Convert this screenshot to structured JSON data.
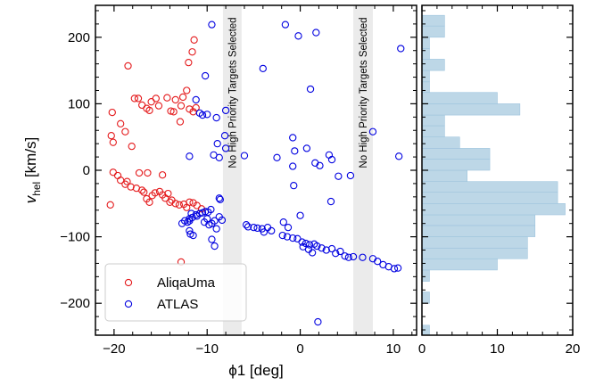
{
  "chart_data": [
    {
      "type": "scatter",
      "xlabel": "ϕ1 [deg]",
      "ylabel_main": "v",
      "ylabel_sub": "hel",
      "ylabel_unit": " [km/s]",
      "xlim": [
        -22,
        12.5
      ],
      "ylim": [
        -248,
        248
      ],
      "xticks": [
        -20,
        -10,
        0,
        10
      ],
      "xtick_labels": [
        "−20",
        "−10",
        "0",
        "10"
      ],
      "yticks": [
        -200,
        -100,
        0,
        100,
        200
      ],
      "ytick_labels": [
        "−200",
        "−100",
        "0",
        "100",
        "200"
      ],
      "legend_placement": "lower-left",
      "bands": [
        {
          "x0": -8.3,
          "x1": -6.3,
          "label": "No High Priority Targets Selected"
        },
        {
          "x0": 5.7,
          "x1": 7.8,
          "label": "No High Priority Targets Selected"
        }
      ],
      "series": [
        {
          "name": "AliqaUma",
          "color": "#e41a1c",
          "points": [
            [
              -18.5,
              157
            ],
            [
              -17.8,
              108
            ],
            [
              -17.4,
              108
            ],
            [
              -17.0,
              98
            ],
            [
              -16.5,
              93
            ],
            [
              -16.2,
              90
            ],
            [
              -16.0,
              103
            ],
            [
              -15.5,
              108
            ],
            [
              -15.2,
              97
            ],
            [
              -14.3,
              109
            ],
            [
              -13.9,
              89
            ],
            [
              -13.6,
              88
            ],
            [
              -13.4,
              106
            ],
            [
              -12.8,
              97
            ],
            [
              -12.6,
              110
            ],
            [
              -12.2,
              120
            ],
            [
              -11.9,
              92
            ],
            [
              -11.5,
              88
            ],
            [
              -11.2,
              94
            ],
            [
              -12.0,
              162
            ],
            [
              -11.6,
              178
            ],
            [
              -11.4,
              196
            ],
            [
              -20.2,
              87
            ],
            [
              -19.3,
              70
            ],
            [
              -18.8,
              58
            ],
            [
              -18.1,
              36
            ],
            [
              -20.3,
              52
            ],
            [
              -20.1,
              42
            ],
            [
              -12.9,
              73
            ],
            [
              -20.1,
              -3
            ],
            [
              -19.6,
              -8
            ],
            [
              -19.3,
              -15
            ],
            [
              -18.8,
              -21
            ],
            [
              -18.2,
              -25
            ],
            [
              -17.6,
              -27
            ],
            [
              -17.0,
              -30
            ],
            [
              -16.8,
              -33
            ],
            [
              -16.5,
              -43
            ],
            [
              -16.2,
              -48
            ],
            [
              -15.9,
              -38
            ],
            [
              -15.6,
              -34
            ],
            [
              -15.1,
              -32
            ],
            [
              -14.8,
              -37
            ],
            [
              -14.5,
              -42
            ],
            [
              -14.2,
              -35
            ],
            [
              -14.0,
              -48
            ],
            [
              -13.8,
              -45
            ],
            [
              -13.4,
              -50
            ],
            [
              -13.0,
              -52
            ],
            [
              -12.5,
              -51
            ],
            [
              -12.2,
              -56
            ],
            [
              -11.9,
              -48
            ],
            [
              -11.5,
              -49
            ],
            [
              -11.1,
              -53
            ],
            [
              -10.6,
              -58
            ],
            [
              -17.3,
              -4
            ],
            [
              -16.4,
              -4
            ],
            [
              -14.8,
              -7
            ],
            [
              -20.4,
              -52
            ],
            [
              -12.8,
              -138
            ],
            [
              -18.6,
              -17
            ]
          ]
        },
        {
          "name": "ATLAS",
          "color": "#0000e0",
          "points": [
            [
              -9.5,
              219
            ],
            [
              -10.2,
              142
            ],
            [
              -8.0,
              90
            ],
            [
              -9.0,
              79
            ],
            [
              -10.5,
              83
            ],
            [
              -10.8,
              86
            ],
            [
              -11.2,
              106
            ],
            [
              -10.0,
              84
            ],
            [
              -8.1,
              52
            ],
            [
              -8.9,
              40
            ],
            [
              -9.3,
              23
            ],
            [
              -8.0,
              33
            ],
            [
              -8.7,
              19
            ],
            [
              -6.0,
              22
            ],
            [
              -4.0,
              153
            ],
            [
              -2.5,
              19
            ],
            [
              -1.6,
              219
            ],
            [
              -0.2,
              202
            ],
            [
              1.7,
              207
            ],
            [
              -0.8,
              6
            ],
            [
              -0.7,
              -23
            ],
            [
              -0.8,
              49
            ],
            [
              1.1,
              122
            ],
            [
              -0.6,
              29
            ],
            [
              0.7,
              33
            ],
            [
              1.6,
              11
            ],
            [
              2.1,
              7
            ],
            [
              3.4,
              16
            ],
            [
              3.1,
              23
            ],
            [
              4.1,
              -9
            ],
            [
              5.4,
              -8
            ],
            [
              3.3,
              -47
            ],
            [
              7.8,
              58
            ],
            [
              10.8,
              183
            ],
            [
              10.6,
              21
            ],
            [
              1.9,
              -228
            ],
            [
              -11.9,
              21
            ],
            [
              -8.7,
              -42
            ],
            [
              -8.6,
              -44
            ],
            [
              -9.6,
              -59
            ],
            [
              -9.9,
              -63
            ],
            [
              -10.2,
              -62
            ],
            [
              -10.5,
              -64
            ],
            [
              -10.8,
              -65
            ],
            [
              -11.2,
              -67
            ],
            [
              -11.7,
              -65
            ],
            [
              -11.1,
              -69
            ],
            [
              -11.6,
              -71
            ],
            [
              -11.9,
              -73
            ],
            [
              -12.1,
              -78
            ],
            [
              -12.4,
              -76
            ],
            [
              -11.9,
              -76
            ],
            [
              -12.7,
              -80
            ],
            [
              -10.3,
              -78
            ],
            [
              -9.5,
              -80
            ],
            [
              -8.7,
              -70
            ],
            [
              -9.0,
              -88
            ],
            [
              -9.8,
              -82
            ],
            [
              -9.2,
              -76
            ],
            [
              -10.0,
              -73
            ],
            [
              -11.9,
              -91
            ],
            [
              -11.5,
              -98
            ],
            [
              -11.8,
              -96
            ],
            [
              -9.5,
              -104
            ],
            [
              -9.2,
              -114
            ],
            [
              -8.4,
              -75
            ],
            [
              -5.6,
              -85
            ],
            [
              -5.0,
              -86
            ],
            [
              -4.6,
              -87
            ],
            [
              -4.1,
              -88
            ],
            [
              -3.9,
              -93
            ],
            [
              -3.5,
              -86
            ],
            [
              -3.1,
              -91
            ],
            [
              -5.8,
              -82
            ],
            [
              -1.3,
              -86
            ],
            [
              -1.8,
              -78
            ],
            [
              0.0,
              -68
            ],
            [
              -1.9,
              -98
            ],
            [
              -1.4,
              -100
            ],
            [
              -0.8,
              -102
            ],
            [
              -0.3,
              -103
            ],
            [
              0.2,
              -108
            ],
            [
              0.6,
              -110
            ],
            [
              1.0,
              -112
            ],
            [
              1.5,
              -111
            ],
            [
              1.8,
              -114
            ],
            [
              2.3,
              -117
            ],
            [
              2.8,
              -120
            ],
            [
              3.4,
              -118
            ],
            [
              3.8,
              -125
            ],
            [
              4.3,
              -122
            ],
            [
              4.8,
              -129
            ],
            [
              5.2,
              -131
            ],
            [
              5.7,
              -130
            ],
            [
              6.7,
              -131
            ],
            [
              7.8,
              -133
            ],
            [
              8.3,
              -137
            ],
            [
              8.9,
              -142
            ],
            [
              9.5,
              -145
            ],
            [
              10.1,
              -148
            ],
            [
              10.5,
              -147
            ],
            [
              0.9,
              -119
            ],
            [
              1.3,
              -124
            ],
            [
              0.3,
              -115
            ]
          ]
        }
      ]
    },
    {
      "type": "bar",
      "orientation": "horizontal",
      "color": "#bdd7e7",
      "xlim": [
        0,
        20
      ],
      "xticks": [
        0,
        10,
        20
      ],
      "xtick_labels": [
        "0",
        "10",
        "20"
      ],
      "bins": [
        {
          "lo": -250,
          "hi": -233,
          "count": 1
        },
        {
          "lo": -200,
          "hi": -183,
          "count": 1
        },
        {
          "lo": -167,
          "hi": -150,
          "count": 1
        },
        {
          "lo": -150,
          "hi": -133,
          "count": 10
        },
        {
          "lo": -133,
          "hi": -117,
          "count": 14
        },
        {
          "lo": -117,
          "hi": -100,
          "count": 14
        },
        {
          "lo": -100,
          "hi": -83,
          "count": 15
        },
        {
          "lo": -83,
          "hi": -67,
          "count": 15
        },
        {
          "lo": -67,
          "hi": -50,
          "count": 19
        },
        {
          "lo": -50,
          "hi": -33,
          "count": 18
        },
        {
          "lo": -33,
          "hi": -17,
          "count": 18
        },
        {
          "lo": -17,
          "hi": 0,
          "count": 6
        },
        {
          "lo": 0,
          "hi": 17,
          "count": 9
        },
        {
          "lo": 17,
          "hi": 33,
          "count": 9
        },
        {
          "lo": 33,
          "hi": 50,
          "count": 5
        },
        {
          "lo": 50,
          "hi": 67,
          "count": 3
        },
        {
          "lo": 67,
          "hi": 83,
          "count": 3
        },
        {
          "lo": 83,
          "hi": 100,
          "count": 13
        },
        {
          "lo": 100,
          "hi": 117,
          "count": 10
        },
        {
          "lo": 117,
          "hi": 133,
          "count": 1
        },
        {
          "lo": 133,
          "hi": 150,
          "count": 1
        },
        {
          "lo": 150,
          "hi": 167,
          "count": 3
        },
        {
          "lo": 167,
          "hi": 183,
          "count": 1
        },
        {
          "lo": 183,
          "hi": 200,
          "count": 1
        },
        {
          "lo": 200,
          "hi": 217,
          "count": 3
        },
        {
          "lo": 217,
          "hi": 233,
          "count": 3
        }
      ]
    }
  ]
}
